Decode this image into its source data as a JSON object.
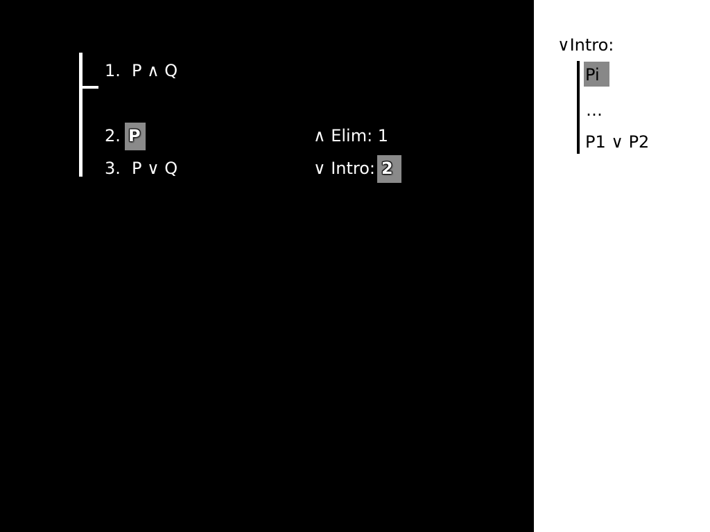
{
  "proof": {
    "lines": [
      {
        "num": "1.",
        "formula": "P ∧ Q",
        "justification": ""
      },
      {
        "num": "2.",
        "formula": "P",
        "justification": "∧ Elim: 1"
      },
      {
        "num": "3.",
        "formula": "P ∨ Q",
        "justification_rule": "∨ Intro:",
        "justification_ref": "2"
      }
    ]
  },
  "rule_panel": {
    "title": "∨Intro:",
    "premise": "Pi",
    "ellipsis": "…",
    "conclusion": "P1 ∨ P2"
  },
  "colors": {
    "proof_background": "#000000",
    "rule_background": "#ffffff",
    "highlight": "#8a8a8a"
  }
}
